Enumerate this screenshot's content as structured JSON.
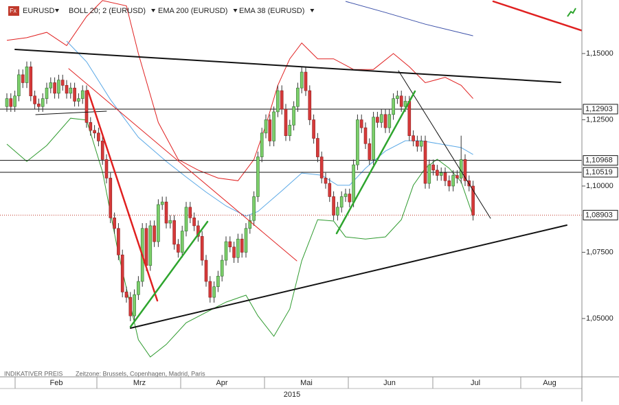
{
  "chart_data": {
    "type": "candlestick",
    "symbol": "EURUSD",
    "up_color": "#7ccf6a",
    "down_color": "#d63a3a",
    "ylim": [
      1.02824,
      1.17021
    ],
    "yticks": [
      {
        "value": 1.05,
        "label": "1,05000"
      },
      {
        "value": 1.075,
        "label": "1,07500"
      },
      {
        "value": 1.1,
        "label": "1,10000"
      },
      {
        "value": 1.125,
        "label": "1,12500"
      },
      {
        "value": 1.15,
        "label": "1,15000"
      }
    ],
    "grid": false,
    "levels": [
      {
        "value": 1.12903,
        "label": "1,12903",
        "style": "solid"
      },
      {
        "value": 1.10968,
        "label": "1,10968",
        "style": "solid"
      },
      {
        "value": 1.10519,
        "label": "1,10519",
        "style": "solid"
      },
      {
        "value": 1.08903,
        "label": "1,08903",
        "style": "dotted"
      }
    ],
    "months": [
      "Feb",
      "Mrz",
      "Apr",
      "Mai",
      "Jun",
      "Jul",
      "Aug"
    ],
    "year": "2015",
    "footer": [
      "INDIKATIVER PREIS",
      "Zeitzone: Brussels, Copenhagen, Madrid, Paris"
    ],
    "indicators": [
      {
        "name": "BOLL 20; 2 (EURUSD)",
        "label_color": "#222222",
        "upper": {
          "color": "#e02020",
          "x": [
            0,
            5,
            10,
            15,
            20,
            24,
            30,
            33,
            38,
            43,
            48,
            53,
            58,
            62,
            65,
            68,
            71,
            74,
            78,
            82,
            87,
            92,
            97,
            101,
            105,
            110,
            114,
            117
          ],
          "values": [
            1.155,
            1.156,
            1.158,
            1.153,
            1.164,
            1.17,
            1.168,
            1.15,
            1.124,
            1.11,
            1.106,
            1.103,
            1.102,
            1.11,
            1.123,
            1.138,
            1.148,
            1.154,
            1.148,
            1.148,
            1.144,
            1.144,
            1.15,
            1.145,
            1.139,
            1.141,
            1.138,
            1.133
          ]
        },
        "lower": {
          "color": "#2e9a2e",
          "x": [
            0,
            5,
            10,
            16,
            20,
            24,
            28,
            33,
            36,
            40,
            45,
            50,
            55,
            60,
            63,
            67,
            71,
            74,
            78,
            82,
            85,
            90,
            95,
            99,
            102,
            105,
            108,
            111,
            114,
            117
          ],
          "values": [
            1.1158,
            1.1093,
            1.1153,
            1.1256,
            1.1249,
            1.1054,
            1.0744,
            1.042,
            1.0355,
            1.0402,
            1.0484,
            1.0523,
            1.0562,
            1.0588,
            1.051,
            1.0433,
            1.0536,
            1.0718,
            1.0873,
            1.0868,
            1.0808,
            1.08,
            1.0808,
            1.0873,
            1.1003,
            1.1067,
            1.1101,
            1.1067,
            1.1016,
            1.0886
          ]
        }
      },
      {
        "name": "EMA 200 (EURUSD)",
        "label_color": "#4a90d9",
        "color": "#3a4fa8",
        "x": [
          85,
          95,
          105,
          117
        ],
        "values": [
          1.1697,
          1.1655,
          1.1611,
          1.1567
        ]
      },
      {
        "name": "EMA 38 (EURUSD)",
        "label_color": "#4a90d9",
        "color": "#5aa8e6",
        "x": [
          15,
          20,
          26,
          33,
          40,
          45,
          50,
          55,
          60,
          63,
          69,
          74,
          79,
          83,
          86,
          90,
          95,
          100,
          104,
          109,
          114,
          117
        ],
        "values": [
          1.1547,
          1.1469,
          1.1326,
          1.1184,
          1.1093,
          1.1034,
          1.0977,
          1.0925,
          1.0886,
          1.0904,
          1.0982,
          1.1049,
          1.1041,
          1.1003,
          1.1003,
          1.1067,
          1.1132,
          1.1171,
          1.1171,
          1.1158,
          1.1145,
          1.1119
        ]
      }
    ],
    "ohlc": [
      [
        1.13,
        1.135,
        1.128,
        1.133
      ],
      [
        1.133,
        1.135,
        1.128,
        1.13
      ],
      [
        1.13,
        1.136,
        1.128,
        1.134
      ],
      [
        1.134,
        1.144,
        1.132,
        1.142
      ],
      [
        1.142,
        1.144,
        1.137,
        1.139
      ],
      [
        1.139,
        1.147,
        1.137,
        1.145
      ],
      [
        1.145,
        1.147,
        1.132,
        1.134
      ],
      [
        1.134,
        1.136,
        1.129,
        1.131
      ],
      [
        1.131,
        1.133,
        1.128,
        1.13
      ],
      [
        1.13,
        1.135,
        1.128,
        1.133
      ],
      [
        1.133,
        1.139,
        1.131,
        1.137
      ],
      [
        1.137,
        1.141,
        1.135,
        1.139
      ],
      [
        1.139,
        1.141,
        1.133,
        1.135
      ],
      [
        1.135,
        1.142,
        1.133,
        1.14
      ],
      [
        1.14,
        1.142,
        1.136,
        1.138
      ],
      [
        1.138,
        1.14,
        1.133,
        1.135
      ],
      [
        1.135,
        1.139,
        1.133,
        1.137
      ],
      [
        1.137,
        1.139,
        1.13,
        1.132
      ],
      [
        1.132,
        1.135,
        1.13,
        1.133
      ],
      [
        1.133,
        1.138,
        1.131,
        1.136
      ],
      [
        1.136,
        1.138,
        1.122,
        1.124
      ],
      [
        1.124,
        1.126,
        1.119,
        1.121
      ],
      [
        1.121,
        1.123,
        1.118,
        1.12
      ],
      [
        1.12,
        1.122,
        1.115,
        1.117
      ],
      [
        1.117,
        1.119,
        1.108,
        1.11
      ],
      [
        1.11,
        1.112,
        1.101,
        1.103
      ],
      [
        1.103,
        1.105,
        1.086,
        1.088
      ],
      [
        1.088,
        1.09,
        1.082,
        1.084
      ],
      [
        1.084,
        1.086,
        1.072,
        1.074
      ],
      [
        1.074,
        1.076,
        1.058,
        1.06
      ],
      [
        1.06,
        1.062,
        1.056,
        1.058
      ],
      [
        1.058,
        1.06,
        1.049,
        1.051
      ],
      [
        1.051,
        1.061,
        1.049,
        1.059
      ],
      [
        1.059,
        1.066,
        1.057,
        1.064
      ],
      [
        1.064,
        1.086,
        1.062,
        1.084
      ],
      [
        1.084,
        1.086,
        1.068,
        1.07
      ],
      [
        1.07,
        1.087,
        1.068,
        1.085
      ],
      [
        1.085,
        1.087,
        1.077,
        1.079
      ],
      [
        1.079,
        1.095,
        1.077,
        1.093
      ],
      [
        1.093,
        1.096,
        1.091,
        1.094
      ],
      [
        1.094,
        1.096,
        1.084,
        1.086
      ],
      [
        1.086,
        1.089,
        1.084,
        1.087
      ],
      [
        1.087,
        1.089,
        1.076,
        1.078
      ],
      [
        1.078,
        1.08,
        1.073,
        1.075
      ],
      [
        1.075,
        1.085,
        1.073,
        1.083
      ],
      [
        1.083,
        1.094,
        1.081,
        1.092
      ],
      [
        1.092,
        1.094,
        1.086,
        1.088
      ],
      [
        1.088,
        1.09,
        1.083,
        1.085
      ],
      [
        1.085,
        1.087,
        1.079,
        1.081
      ],
      [
        1.081,
        1.083,
        1.07,
        1.072
      ],
      [
        1.072,
        1.074,
        1.062,
        1.064
      ],
      [
        1.064,
        1.066,
        1.056,
        1.058
      ],
      [
        1.058,
        1.064,
        1.056,
        1.062
      ],
      [
        1.062,
        1.068,
        1.06,
        1.066
      ],
      [
        1.066,
        1.074,
        1.064,
        1.072
      ],
      [
        1.072,
        1.081,
        1.07,
        1.079
      ],
      [
        1.079,
        1.081,
        1.075,
        1.077
      ],
      [
        1.077,
        1.079,
        1.071,
        1.073
      ],
      [
        1.073,
        1.082,
        1.071,
        1.08
      ],
      [
        1.08,
        1.082,
        1.073,
        1.075
      ],
      [
        1.075,
        1.086,
        1.073,
        1.084
      ],
      [
        1.084,
        1.089,
        1.082,
        1.087
      ],
      [
        1.087,
        1.098,
        1.085,
        1.096
      ],
      [
        1.096,
        1.113,
        1.094,
        1.111
      ],
      [
        1.111,
        1.122,
        1.109,
        1.12
      ],
      [
        1.12,
        1.127,
        1.118,
        1.125
      ],
      [
        1.125,
        1.127,
        1.115,
        1.117
      ],
      [
        1.117,
        1.13,
        1.115,
        1.128
      ],
      [
        1.128,
        1.138,
        1.126,
        1.136
      ],
      [
        1.136,
        1.138,
        1.127,
        1.129
      ],
      [
        1.129,
        1.131,
        1.117,
        1.119
      ],
      [
        1.119,
        1.125,
        1.117,
        1.123
      ],
      [
        1.123,
        1.132,
        1.121,
        1.13
      ],
      [
        1.13,
        1.139,
        1.128,
        1.137
      ],
      [
        1.137,
        1.145,
        1.135,
        1.143
      ],
      [
        1.143,
        1.145,
        1.134,
        1.136
      ],
      [
        1.136,
        1.138,
        1.123,
        1.125
      ],
      [
        1.125,
        1.127,
        1.116,
        1.118
      ],
      [
        1.118,
        1.12,
        1.109,
        1.111
      ],
      [
        1.111,
        1.113,
        1.101,
        1.103
      ],
      [
        1.103,
        1.105,
        1.099,
        1.101
      ],
      [
        1.101,
        1.103,
        1.094,
        1.096
      ],
      [
        1.096,
        1.098,
        1.087,
        1.089
      ],
      [
        1.089,
        1.094,
        1.087,
        1.092
      ],
      [
        1.092,
        1.098,
        1.09,
        1.096
      ],
      [
        1.096,
        1.099,
        1.094,
        1.097
      ],
      [
        1.097,
        1.099,
        1.092,
        1.094
      ],
      [
        1.094,
        1.11,
        1.092,
        1.108
      ],
      [
        1.108,
        1.127,
        1.106,
        1.125
      ],
      [
        1.125,
        1.127,
        1.12,
        1.122
      ],
      [
        1.122,
        1.124,
        1.114,
        1.116
      ],
      [
        1.116,
        1.118,
        1.108,
        1.11
      ],
      [
        1.11,
        1.128,
        1.108,
        1.126
      ],
      [
        1.126,
        1.128,
        1.122,
        1.124
      ],
      [
        1.124,
        1.129,
        1.122,
        1.127
      ],
      [
        1.127,
        1.129,
        1.12,
        1.122
      ],
      [
        1.122,
        1.129,
        1.12,
        1.127
      ],
      [
        1.127,
        1.135,
        1.125,
        1.133
      ],
      [
        1.133,
        1.136,
        1.131,
        1.134
      ],
      [
        1.134,
        1.136,
        1.128,
        1.13
      ],
      [
        1.13,
        1.134,
        1.128,
        1.132
      ],
      [
        1.132,
        1.134,
        1.117,
        1.119
      ],
      [
        1.119,
        1.121,
        1.115,
        1.117
      ],
      [
        1.117,
        1.119,
        1.113,
        1.115
      ],
      [
        1.115,
        1.119,
        1.113,
        1.117
      ],
      [
        1.117,
        1.119,
        1.099,
        1.101
      ],
      [
        1.101,
        1.11,
        1.099,
        1.108
      ],
      [
        1.108,
        1.11,
        1.104,
        1.106
      ],
      [
        1.106,
        1.108,
        1.102,
        1.104
      ],
      [
        1.104,
        1.107,
        1.102,
        1.105
      ],
      [
        1.105,
        1.107,
        1.1,
        1.102
      ],
      [
        1.102,
        1.104,
        1.098,
        1.1
      ],
      [
        1.1,
        1.106,
        1.098,
        1.104
      ],
      [
        1.104,
        1.106,
        1.101,
        1.103
      ],
      [
        1.103,
        1.119,
        1.101,
        1.11
      ],
      [
        1.11,
        1.112,
        1.1,
        1.102
      ],
      [
        1.102,
        1.104,
        1.098,
        1.1
      ],
      [
        1.1,
        1.102,
        1.087,
        1.089
      ]
    ]
  }
}
